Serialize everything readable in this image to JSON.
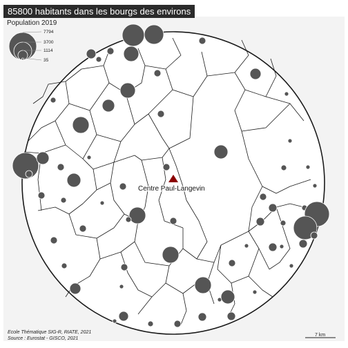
{
  "map": {
    "title": "85800 habitants dans les bourgs des environs",
    "center_label": "Centre Paul-Langevin",
    "colors": {
      "background": "#ffffff",
      "study_area": "#f3f3f3",
      "commune_fill": "#ffffff",
      "commune_stroke": "#1a1a1a",
      "circle_fill": "#555555",
      "circle_stroke": "#ffffff",
      "center_marker": "#8b0000",
      "title_bar": "#2b2b2b"
    }
  },
  "legend": {
    "title": "Population 2019",
    "values": [
      "7794",
      "3700",
      "1114",
      "35"
    ]
  },
  "credits": {
    "line1": "Ecole Thématique SIG-R, RIATE, 2021",
    "line2": "Source : Eurostat - GISCO, 2021"
  },
  "scale": {
    "label": "7 km"
  },
  "icons": {
    "center": "triangle-marker-icon",
    "symbol": "proportional-circle-icon"
  }
}
